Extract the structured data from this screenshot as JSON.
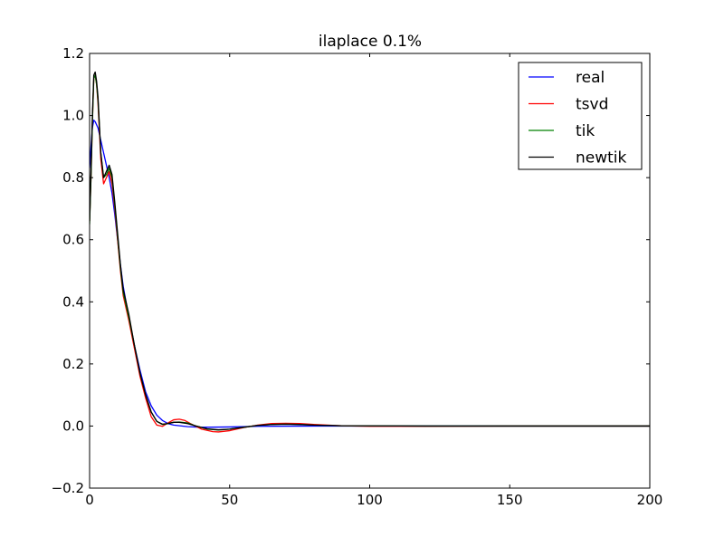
{
  "chart_data": {
    "type": "line",
    "title": "ilaplace 0.1%",
    "xlabel": "",
    "ylabel": "",
    "xlim": [
      0,
      200
    ],
    "ylim": [
      -0.2,
      1.2
    ],
    "xticks": [
      0,
      50,
      100,
      150,
      200
    ],
    "yticks": [
      -0.2,
      0.0,
      0.2,
      0.4,
      0.6,
      0.8,
      1.0,
      1.2
    ],
    "xtick_labels": [
      "0",
      "50",
      "100",
      "150",
      "200"
    ],
    "ytick_labels": [
      "−0.2",
      "0.0",
      "0.2",
      "0.4",
      "0.6",
      "0.8",
      "1.0",
      "1.2"
    ],
    "grid": false,
    "legend_position": "top-right",
    "series": [
      {
        "name": "real",
        "color": "#0000ff",
        "points": [
          [
            0,
            0.83
          ],
          [
            0.5,
            0.9
          ],
          [
            1,
            0.96
          ],
          [
            1.5,
            0.985
          ],
          [
            2,
            0.98
          ],
          [
            3,
            0.96
          ],
          [
            4,
            0.92
          ],
          [
            5,
            0.88
          ],
          [
            6,
            0.84
          ],
          [
            7,
            0.8
          ],
          [
            8,
            0.75
          ],
          [
            9,
            0.68
          ],
          [
            10,
            0.6
          ],
          [
            11,
            0.52
          ],
          [
            12,
            0.45
          ],
          [
            14,
            0.35
          ],
          [
            16,
            0.26
          ],
          [
            18,
            0.18
          ],
          [
            20,
            0.11
          ],
          [
            22,
            0.065
          ],
          [
            24,
            0.035
          ],
          [
            26,
            0.018
          ],
          [
            28,
            0.008
          ],
          [
            30,
            0.003
          ],
          [
            35,
            -0.002
          ],
          [
            40,
            -0.004
          ],
          [
            50,
            -0.003
          ],
          [
            60,
            -0.001
          ],
          [
            80,
            0.0
          ],
          [
            120,
            0.0
          ],
          [
            200,
            0.0
          ]
        ]
      },
      {
        "name": "tsvd",
        "color": "#ff0000",
        "points": [
          [
            0,
            0.66
          ],
          [
            0.5,
            0.8
          ],
          [
            1,
            0.98
          ],
          [
            1.5,
            1.12
          ],
          [
            2,
            1.13
          ],
          [
            2.5,
            1.1
          ],
          [
            3,
            1.04
          ],
          [
            4,
            0.86
          ],
          [
            5,
            0.78
          ],
          [
            6,
            0.8
          ],
          [
            7,
            0.82
          ],
          [
            8,
            0.78
          ],
          [
            9,
            0.7
          ],
          [
            10,
            0.6
          ],
          [
            11,
            0.5
          ],
          [
            12,
            0.42
          ],
          [
            14,
            0.34
          ],
          [
            16,
            0.25
          ],
          [
            18,
            0.16
          ],
          [
            20,
            0.09
          ],
          [
            22,
            0.03
          ],
          [
            24,
            0.003
          ],
          [
            26,
            -0.001
          ],
          [
            28,
            0.01
          ],
          [
            30,
            0.02
          ],
          [
            32,
            0.022
          ],
          [
            34,
            0.018
          ],
          [
            36,
            0.008
          ],
          [
            40,
            -0.01
          ],
          [
            44,
            -0.018
          ],
          [
            46,
            -0.019
          ],
          [
            50,
            -0.015
          ],
          [
            55,
            -0.005
          ],
          [
            60,
            0.003
          ],
          [
            65,
            0.008
          ],
          [
            70,
            0.009
          ],
          [
            75,
            0.008
          ],
          [
            80,
            0.005
          ],
          [
            90,
            0.001
          ],
          [
            100,
            -0.001
          ],
          [
            120,
            -0.001
          ],
          [
            150,
            0.0
          ],
          [
            200,
            0.0
          ]
        ]
      },
      {
        "name": "tik",
        "color": "#008000",
        "points": [
          [
            0,
            0.65
          ],
          [
            0.5,
            0.8
          ],
          [
            1,
            0.98
          ],
          [
            1.5,
            1.12
          ],
          [
            2,
            1.13
          ],
          [
            2.5,
            1.1
          ],
          [
            3,
            1.05
          ],
          [
            4,
            0.88
          ],
          [
            5,
            0.8
          ],
          [
            6,
            0.81
          ],
          [
            7,
            0.83
          ],
          [
            8,
            0.8
          ],
          [
            9,
            0.71
          ],
          [
            10,
            0.61
          ],
          [
            11,
            0.51
          ],
          [
            12,
            0.43
          ],
          [
            14,
            0.35
          ],
          [
            16,
            0.26
          ],
          [
            18,
            0.17
          ],
          [
            20,
            0.1
          ],
          [
            22,
            0.045
          ],
          [
            24,
            0.015
          ],
          [
            26,
            0.005
          ],
          [
            28,
            0.008
          ],
          [
            30,
            0.012
          ],
          [
            32,
            0.013
          ],
          [
            35,
            0.01
          ],
          [
            38,
            0.0
          ],
          [
            42,
            -0.01
          ],
          [
            46,
            -0.013
          ],
          [
            50,
            -0.01
          ],
          [
            55,
            -0.004
          ],
          [
            60,
            0.002
          ],
          [
            65,
            0.005
          ],
          [
            70,
            0.006
          ],
          [
            75,
            0.005
          ],
          [
            80,
            0.003
          ],
          [
            90,
            0.001
          ],
          [
            120,
            0.0
          ],
          [
            200,
            0.0
          ]
        ]
      },
      {
        "name": "newtik",
        "color": "#000000",
        "points": [
          [
            0,
            0.66
          ],
          [
            0.5,
            0.82
          ],
          [
            1,
            1.0
          ],
          [
            1.5,
            1.13
          ],
          [
            2,
            1.14
          ],
          [
            2.5,
            1.11
          ],
          [
            3,
            1.06
          ],
          [
            4,
            0.88
          ],
          [
            5,
            0.8
          ],
          [
            6,
            0.82
          ],
          [
            7,
            0.84
          ],
          [
            8,
            0.81
          ],
          [
            9,
            0.72
          ],
          [
            10,
            0.62
          ],
          [
            11,
            0.52
          ],
          [
            12,
            0.44
          ],
          [
            14,
            0.36
          ],
          [
            16,
            0.26
          ],
          [
            18,
            0.17
          ],
          [
            20,
            0.1
          ],
          [
            22,
            0.045
          ],
          [
            24,
            0.015
          ],
          [
            26,
            0.006
          ],
          [
            28,
            0.008
          ],
          [
            30,
            0.012
          ],
          [
            32,
            0.012
          ],
          [
            35,
            0.008
          ],
          [
            38,
            0.0
          ],
          [
            42,
            -0.009
          ],
          [
            46,
            -0.012
          ],
          [
            50,
            -0.01
          ],
          [
            55,
            -0.004
          ],
          [
            60,
            0.002
          ],
          [
            65,
            0.005
          ],
          [
            70,
            0.006
          ],
          [
            75,
            0.005
          ],
          [
            80,
            0.003
          ],
          [
            90,
            0.001
          ],
          [
            120,
            0.0
          ],
          [
            200,
            0.0
          ]
        ]
      }
    ]
  }
}
